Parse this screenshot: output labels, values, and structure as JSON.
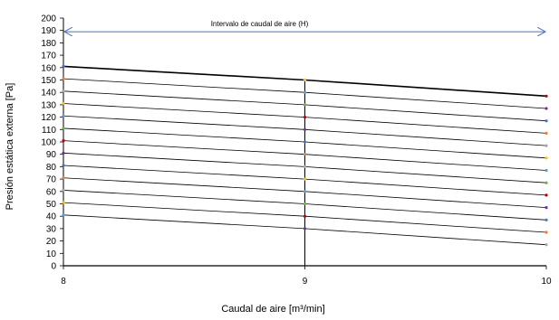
{
  "chart_data": {
    "type": "line",
    "title": "",
    "xlabel": "Caudal de aire [m³/min]",
    "ylabel": "Presión estática externa [Pa]",
    "xlim": [
      8,
      10
    ],
    "ylim": [
      0,
      200
    ],
    "x_ticks": [
      8,
      9,
      10
    ],
    "y_tick_step": 10,
    "grid": false,
    "vertical_marker_x": 9,
    "annotation": {
      "text": "Intervalo de caudal de aire (H)",
      "x_range": [
        8,
        10
      ],
      "y": 189
    },
    "series": [
      {
        "x": [
          8,
          9,
          10
        ],
        "y": [
          161,
          150,
          137
        ],
        "color": "#000000",
        "width": 1.6
      },
      {
        "x": [
          8,
          9,
          10
        ],
        "y": [
          151,
          140,
          127
        ],
        "color": "#000000",
        "width": 0.8
      },
      {
        "x": [
          8,
          9,
          10
        ],
        "y": [
          141,
          130,
          117
        ],
        "color": "#000000",
        "width": 0.8
      },
      {
        "x": [
          8,
          9,
          10
        ],
        "y": [
          131,
          120,
          107
        ],
        "color": "#000000",
        "width": 0.8
      },
      {
        "x": [
          8,
          9,
          10
        ],
        "y": [
          121,
          110,
          97
        ],
        "color": "#000000",
        "width": 0.8
      },
      {
        "x": [
          8,
          9,
          10
        ],
        "y": [
          111,
          100,
          87
        ],
        "color": "#000000",
        "width": 0.8
      },
      {
        "x": [
          8,
          9,
          10
        ],
        "y": [
          101,
          90,
          77
        ],
        "color": "#000000",
        "width": 0.8
      },
      {
        "x": [
          8,
          9,
          10
        ],
        "y": [
          91,
          80,
          67
        ],
        "color": "#000000",
        "width": 0.8
      },
      {
        "x": [
          8,
          9,
          10
        ],
        "y": [
          81,
          70,
          57
        ],
        "color": "#000000",
        "width": 0.8
      },
      {
        "x": [
          8,
          9,
          10
        ],
        "y": [
          71,
          60,
          47
        ],
        "color": "#000000",
        "width": 0.8
      },
      {
        "x": [
          8,
          9,
          10
        ],
        "y": [
          61,
          50,
          37
        ],
        "color": "#000000",
        "width": 0.8
      },
      {
        "x": [
          8,
          9,
          10
        ],
        "y": [
          51,
          40,
          27
        ],
        "color": "#000000",
        "width": 0.8
      },
      {
        "x": [
          8,
          9,
          10
        ],
        "y": [
          41,
          30,
          17
        ],
        "color": "#000000",
        "width": 0.8
      }
    ],
    "marker_colors": [
      "#4472c4",
      "#ed7d31",
      "#a5a5a5",
      "#ffc000",
      "#5b9bd5",
      "#70ad47",
      "#c00000",
      "#7030a0"
    ],
    "arrow_color": "#4472c4"
  }
}
